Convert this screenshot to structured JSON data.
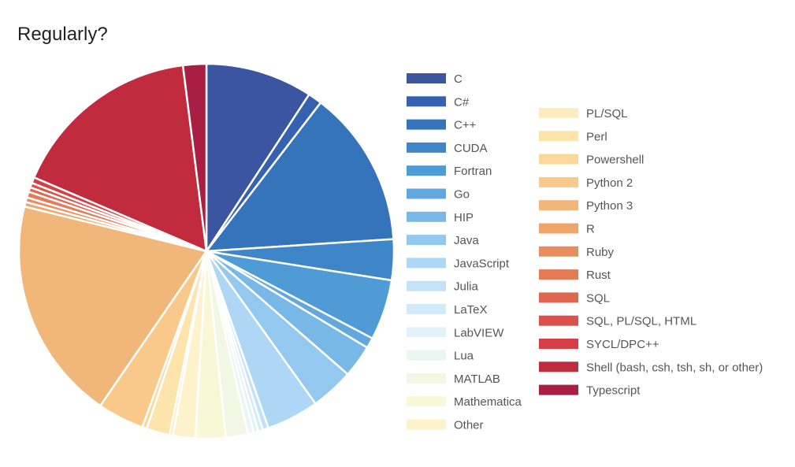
{
  "chart_data": {
    "type": "pie",
    "title": "Regularly?",
    "legend_placement": "right",
    "slices": [
      {
        "label": "C",
        "value": 9.2,
        "color": "#3b55a0"
      },
      {
        "label": "C#",
        "value": 1.2,
        "color": "#3561ae"
      },
      {
        "label": "C++",
        "value": 13.5,
        "color": "#3574ba"
      },
      {
        "label": "CUDA",
        "value": 3.5,
        "color": "#3f86c8"
      },
      {
        "label": "Fortran",
        "value": 5.2,
        "color": "#4e9bd6"
      },
      {
        "label": "Go",
        "value": 0.9,
        "color": "#62a8de"
      },
      {
        "label": "HIP",
        "value": 2.8,
        "color": "#78b8e6"
      },
      {
        "label": "Java",
        "value": 3.7,
        "color": "#93c8ef"
      },
      {
        "label": "JavaScript",
        "value": 4.5,
        "color": "#aed6f5"
      },
      {
        "label": "Julia",
        "value": 0.5,
        "color": "#c3e1f7"
      },
      {
        "label": "LaTeX",
        "value": 0.4,
        "color": "#d3eaf9"
      },
      {
        "label": "LabVIEW",
        "value": 0.4,
        "color": "#e3f2f9"
      },
      {
        "label": "Lua",
        "value": 0.5,
        "color": "#eaf6f0"
      },
      {
        "label": "MATLAB",
        "value": 1.9,
        "color": "#f1f7e3"
      },
      {
        "label": "Mathematica",
        "value": 2.6,
        "color": "#f8f8d7"
      },
      {
        "label": "Other",
        "value": 1.9,
        "color": "#fdf2cc"
      },
      {
        "label": "PL/SQL",
        "value": 0.3,
        "color": "#fdedbe"
      },
      {
        "label": "Perl",
        "value": 2.0,
        "color": "#fde4ab"
      },
      {
        "label": "Powershell",
        "value": 0.4,
        "color": "#fbd89a"
      },
      {
        "label": "Python 2",
        "value": 4.0,
        "color": "#f8c98a"
      },
      {
        "label": "Python 3",
        "value": 19.2,
        "color": "#f1b67a"
      },
      {
        "label": "R",
        "value": 0.4,
        "color": "#eda56c"
      },
      {
        "label": "Ruby",
        "value": 0.4,
        "color": "#e98d5d"
      },
      {
        "label": "Rust",
        "value": 0.5,
        "color": "#e47b57"
      },
      {
        "label": "SQL",
        "value": 0.4,
        "color": "#e06650"
      },
      {
        "label": "SQL, PL/SQL, HTML",
        "value": 0.4,
        "color": "#da5149"
      },
      {
        "label": "SYCL/DPC++",
        "value": 0.5,
        "color": "#d43e44"
      },
      {
        "label": "Shell (bash, csh, tsh, sh, or other)",
        "value": 16.5,
        "color": "#c12b3e"
      },
      {
        "label": "Typescript",
        "value": 2.0,
        "color": "#a81f43"
      }
    ]
  }
}
